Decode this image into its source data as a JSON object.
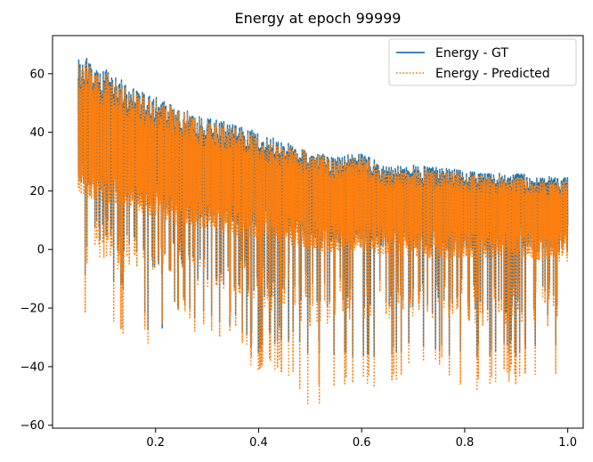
{
  "chart_data": {
    "type": "line",
    "title": "Energy at epoch 99999",
    "xlabel": "",
    "ylabel": "",
    "xlim": [
      0.0,
      1.03
    ],
    "ylim": [
      -61,
      73
    ],
    "xticks": [
      0.2,
      0.4,
      0.6,
      0.8,
      1.0
    ],
    "xtick_labels": [
      "0.2",
      "0.4",
      "0.6",
      "0.8",
      "1.0"
    ],
    "yticks": [
      -60,
      -40,
      -20,
      0,
      20,
      40,
      60
    ],
    "ytick_labels": [
      "−60",
      "−40",
      "−20",
      "0",
      "20",
      "40",
      "60"
    ],
    "grid": false,
    "legend_position": "top-right",
    "x_range": [
      0.05,
      1.0
    ],
    "series": [
      {
        "name": "Energy - GT",
        "color": "#1f77b4",
        "style": "solid",
        "envelope_x": [
          0.05,
          0.1,
          0.15,
          0.2,
          0.25,
          0.3,
          0.35,
          0.4,
          0.45,
          0.5,
          0.55,
          0.6,
          0.65,
          0.7,
          0.75,
          0.8,
          0.85,
          0.9,
          0.95,
          1.0
        ],
        "envelope_upper": [
          67,
          62,
          56,
          52,
          48,
          45,
          43,
          40,
          37,
          33,
          32,
          33,
          28,
          29,
          28,
          27,
          26,
          26,
          25,
          25
        ],
        "envelope_lower": [
          -12,
          -10,
          -20,
          -31,
          -20,
          -27,
          -26,
          -37,
          -30,
          -37,
          -36,
          -37,
          -37,
          -36,
          -37,
          -37,
          -37,
          -37,
          -37,
          -37
        ],
        "envelope_typical_low": [
          30,
          28,
          25,
          22,
          20,
          18,
          17,
          15,
          14,
          12,
          10,
          10,
          9,
          8,
          8,
          8,
          8,
          8,
          7,
          7
        ]
      },
      {
        "name": "Energy - Predicted",
        "color": "#ff7f0e",
        "style": "dotted",
        "envelope_x": [
          0.05,
          0.1,
          0.15,
          0.2,
          0.25,
          0.3,
          0.35,
          0.4,
          0.45,
          0.5,
          0.55,
          0.6,
          0.65,
          0.7,
          0.75,
          0.8,
          0.85,
          0.9,
          0.95,
          1.0
        ],
        "envelope_upper": [
          66,
          61,
          55,
          51,
          48,
          44,
          42,
          39,
          36,
          33,
          31,
          32,
          27,
          28,
          27,
          26,
          25,
          25,
          24,
          24
        ],
        "envelope_lower": [
          -22,
          -23,
          -35,
          -28,
          -20,
          -31,
          -27,
          -42,
          -40,
          -54,
          -45,
          -44,
          -46,
          -42,
          -40,
          -47,
          -46,
          -44,
          -45,
          -44
        ],
        "envelope_typical_low": [
          28,
          26,
          23,
          20,
          18,
          16,
          15,
          13,
          12,
          10,
          9,
          9,
          8,
          7,
          7,
          7,
          7,
          7,
          6,
          6
        ]
      }
    ]
  }
}
